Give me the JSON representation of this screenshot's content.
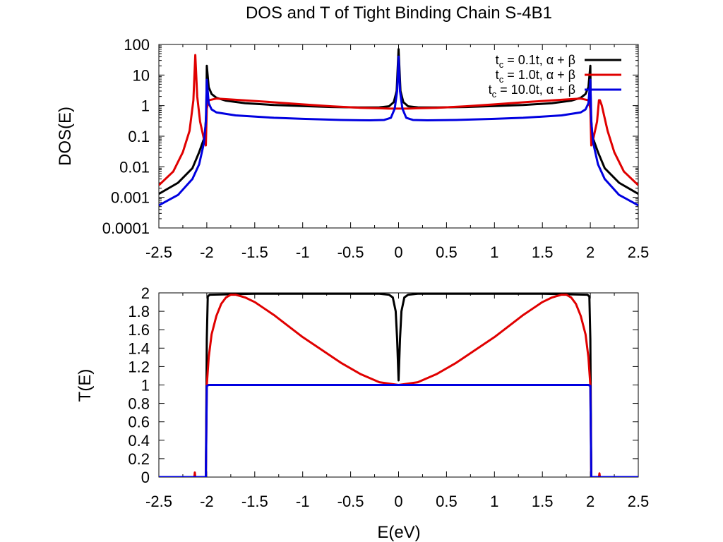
{
  "figure": {
    "title": "DOS and T of Tight Binding Chain S-4B1",
    "xlabel": "E(eV)"
  },
  "chart_data": [
    {
      "type": "line",
      "ylabel": "DOS(E)",
      "yscale": "log",
      "xlim": [
        -2.5,
        2.5
      ],
      "ylim": [
        0.0001,
        100
      ],
      "x_ticks": [
        "-2.5",
        "-2",
        "-1.5",
        "-1",
        "-0.5",
        "0",
        "0.5",
        "1",
        "1.5",
        "2",
        "2.5"
      ],
      "y_ticks": [
        "0.0001",
        "0.001",
        "0.01",
        "0.1",
        "1",
        "10",
        "100"
      ],
      "legend_position": "top-right",
      "series": [
        {
          "name": "t_c = 0.1t, α + β",
          "legend_parts": {
            "t": "t",
            "sub": "c",
            "rest": " = 0.1t, α + β"
          },
          "color": "#000000",
          "points": [
            [
              -2.5,
              0.0013
            ],
            [
              -2.3,
              0.003
            ],
            [
              -2.15,
              0.009
            ],
            [
              -2.08,
              0.03
            ],
            [
              -2.02,
              0.1
            ],
            [
              -2.005,
              0.6
            ],
            [
              -2.0,
              20
            ],
            [
              -1.98,
              4.0
            ],
            [
              -1.95,
              2.4
            ],
            [
              -1.9,
              1.8
            ],
            [
              -1.8,
              1.45
            ],
            [
              -1.6,
              1.2
            ],
            [
              -1.3,
              1.05
            ],
            [
              -1.0,
              0.97
            ],
            [
              -0.7,
              0.9
            ],
            [
              -0.4,
              0.87
            ],
            [
              -0.2,
              0.88
            ],
            [
              -0.1,
              0.95
            ],
            [
              -0.05,
              1.3
            ],
            [
              -0.02,
              3.0
            ],
            [
              0.0,
              70
            ],
            [
              0.02,
              3.0
            ],
            [
              0.05,
              1.3
            ],
            [
              0.1,
              0.95
            ],
            [
              0.2,
              0.88
            ],
            [
              0.4,
              0.87
            ],
            [
              0.7,
              0.9
            ],
            [
              1.0,
              0.97
            ],
            [
              1.3,
              1.05
            ],
            [
              1.6,
              1.2
            ],
            [
              1.8,
              1.45
            ],
            [
              1.9,
              1.8
            ],
            [
              1.95,
              2.4
            ],
            [
              1.98,
              4.0
            ],
            [
              2.0,
              20
            ],
            [
              2.005,
              0.6
            ],
            [
              2.02,
              0.1
            ],
            [
              2.08,
              0.03
            ],
            [
              2.15,
              0.009
            ],
            [
              2.3,
              0.003
            ],
            [
              2.5,
              0.0013
            ]
          ]
        },
        {
          "name": "t_c = 1.0t, α + β",
          "legend_parts": {
            "t": "t",
            "sub": "c",
            "rest": " = 1.0t, α + β"
          },
          "color": "#e00000",
          "points": [
            [
              -2.5,
              0.0025
            ],
            [
              -2.35,
              0.007
            ],
            [
              -2.25,
              0.03
            ],
            [
              -2.18,
              0.15
            ],
            [
              -2.14,
              1.5
            ],
            [
              -2.12,
              45
            ],
            [
              -2.1,
              2.0
            ],
            [
              -2.07,
              0.3
            ],
            [
              -2.03,
              0.08
            ],
            [
              -2.01,
              0.05
            ],
            [
              -2.0,
              0.8
            ],
            [
              -1.98,
              1.5
            ],
            [
              -1.9,
              1.7
            ],
            [
              -1.7,
              1.55
            ],
            [
              -1.4,
              1.35
            ],
            [
              -1.0,
              1.1
            ],
            [
              -0.7,
              0.95
            ],
            [
              -0.4,
              0.85
            ],
            [
              -0.2,
              0.82
            ],
            [
              -0.1,
              0.8
            ],
            [
              0.0,
              0.8
            ],
            [
              0.1,
              0.8
            ],
            [
              0.2,
              0.82
            ],
            [
              0.4,
              0.85
            ],
            [
              0.7,
              0.95
            ],
            [
              1.0,
              1.1
            ],
            [
              1.4,
              1.35
            ],
            [
              1.7,
              1.55
            ],
            [
              1.9,
              1.7
            ],
            [
              1.98,
              1.5
            ],
            [
              2.0,
              0.8
            ],
            [
              2.01,
              0.05
            ],
            [
              2.03,
              0.08
            ],
            [
              2.07,
              0.3
            ],
            [
              2.09,
              1.5
            ],
            [
              2.1,
              1.5
            ],
            [
              2.12,
              1.0
            ],
            [
              2.18,
              0.15
            ],
            [
              2.25,
              0.03
            ],
            [
              2.35,
              0.007
            ],
            [
              2.5,
              0.0025
            ]
          ]
        },
        {
          "name": "t_c = 10.0t, α + β",
          "legend_parts": {
            "t": "t",
            "sub": "c",
            "rest": " = 10.0t, α + β"
          },
          "color": "#0000e0",
          "points": [
            [
              -2.5,
              0.00055
            ],
            [
              -2.3,
              0.0012
            ],
            [
              -2.15,
              0.004
            ],
            [
              -2.08,
              0.012
            ],
            [
              -2.03,
              0.06
            ],
            [
              -2.01,
              0.3
            ],
            [
              -2.0,
              7.0
            ],
            [
              -1.98,
              1.2
            ],
            [
              -1.95,
              0.75
            ],
            [
              -1.9,
              0.6
            ],
            [
              -1.7,
              0.48
            ],
            [
              -1.3,
              0.4
            ],
            [
              -1.0,
              0.37
            ],
            [
              -0.6,
              0.34
            ],
            [
              -0.3,
              0.33
            ],
            [
              -0.15,
              0.34
            ],
            [
              -0.08,
              0.4
            ],
            [
              -0.04,
              0.8
            ],
            [
              -0.015,
              3.0
            ],
            [
              0.0,
              40
            ],
            [
              0.015,
              3.0
            ],
            [
              0.04,
              0.8
            ],
            [
              0.08,
              0.4
            ],
            [
              0.15,
              0.34
            ],
            [
              0.3,
              0.33
            ],
            [
              0.6,
              0.34
            ],
            [
              1.0,
              0.37
            ],
            [
              1.3,
              0.4
            ],
            [
              1.7,
              0.48
            ],
            [
              1.9,
              0.6
            ],
            [
              1.95,
              0.75
            ],
            [
              1.98,
              1.2
            ],
            [
              2.0,
              7.0
            ],
            [
              2.01,
              0.3
            ],
            [
              2.03,
              0.06
            ],
            [
              2.08,
              0.012
            ],
            [
              2.15,
              0.004
            ],
            [
              2.3,
              0.0012
            ],
            [
              2.5,
              0.00055
            ]
          ]
        }
      ]
    },
    {
      "type": "line",
      "ylabel": "T(E)",
      "yscale": "linear",
      "xlim": [
        -2.5,
        2.5
      ],
      "ylim": [
        0,
        2
      ],
      "x_ticks": [
        "-2.5",
        "-2",
        "-1.5",
        "-1",
        "-0.5",
        "0",
        "0.5",
        "1",
        "1.5",
        "2",
        "2.5"
      ],
      "y_ticks": [
        "0",
        "0.2",
        "0.4",
        "0.6",
        "0.8",
        "1",
        "1.2",
        "1.4",
        "1.6",
        "1.8",
        "2"
      ],
      "series": [
        {
          "name": "t_c = 0.1t, α + β",
          "color": "#000000",
          "points": [
            [
              -2.5,
              0
            ],
            [
              -2.01,
              0
            ],
            [
              -2.0,
              1.5
            ],
            [
              -1.99,
              1.96
            ],
            [
              -1.97,
              1.98
            ],
            [
              -1.5,
              1.99
            ],
            [
              -1.0,
              1.99
            ],
            [
              -0.5,
              1.99
            ],
            [
              -0.2,
              1.99
            ],
            [
              -0.1,
              1.98
            ],
            [
              -0.06,
              1.95
            ],
            [
              -0.03,
              1.8
            ],
            [
              -0.015,
              1.5
            ],
            [
              0.0,
              1.05
            ],
            [
              0.015,
              1.5
            ],
            [
              0.03,
              1.8
            ],
            [
              0.06,
              1.95
            ],
            [
              0.1,
              1.98
            ],
            [
              0.2,
              1.99
            ],
            [
              0.5,
              1.99
            ],
            [
              1.0,
              1.99
            ],
            [
              1.5,
              1.99
            ],
            [
              1.97,
              1.98
            ],
            [
              1.99,
              1.96
            ],
            [
              2.0,
              1.5
            ],
            [
              2.01,
              0
            ],
            [
              2.5,
              0
            ]
          ]
        },
        {
          "name": "t_c = 1.0t, α + β",
          "color": "#e00000",
          "points": [
            [
              -2.5,
              0
            ],
            [
              -2.13,
              0
            ],
            [
              -2.125,
              0.05
            ],
            [
              -2.12,
              0
            ],
            [
              -2.01,
              0
            ],
            [
              -2.0,
              1.0
            ],
            [
              -1.98,
              1.3
            ],
            [
              -1.95,
              1.55
            ],
            [
              -1.9,
              1.75
            ],
            [
              -1.85,
              1.88
            ],
            [
              -1.8,
              1.95
            ],
            [
              -1.75,
              1.98
            ],
            [
              -1.7,
              1.98
            ],
            [
              -1.6,
              1.95
            ],
            [
              -1.5,
              1.9
            ],
            [
              -1.4,
              1.83
            ],
            [
              -1.3,
              1.76
            ],
            [
              -1.2,
              1.68
            ],
            [
              -1.0,
              1.52
            ],
            [
              -0.8,
              1.38
            ],
            [
              -0.6,
              1.24
            ],
            [
              -0.4,
              1.12
            ],
            [
              -0.2,
              1.03
            ],
            [
              0.0,
              1.0
            ],
            [
              0.2,
              1.03
            ],
            [
              0.4,
              1.12
            ],
            [
              0.6,
              1.24
            ],
            [
              0.8,
              1.38
            ],
            [
              1.0,
              1.52
            ],
            [
              1.2,
              1.68
            ],
            [
              1.3,
              1.76
            ],
            [
              1.4,
              1.83
            ],
            [
              1.5,
              1.9
            ],
            [
              1.6,
              1.95
            ],
            [
              1.7,
              1.98
            ],
            [
              1.75,
              1.98
            ],
            [
              1.8,
              1.95
            ],
            [
              1.85,
              1.88
            ],
            [
              1.9,
              1.75
            ],
            [
              1.95,
              1.55
            ],
            [
              1.98,
              1.3
            ],
            [
              2.0,
              1.0
            ],
            [
              2.01,
              0
            ],
            [
              2.09,
              0
            ],
            [
              2.095,
              0.04
            ],
            [
              2.1,
              0
            ],
            [
              2.5,
              0
            ]
          ]
        },
        {
          "name": "t_c = 10.0t, α + β",
          "color": "#0000e0",
          "points": [
            [
              -2.5,
              0
            ],
            [
              -2.01,
              0
            ],
            [
              -2.0,
              0.99
            ],
            [
              -1.98,
              1.0
            ],
            [
              -1.0,
              1.0
            ],
            [
              0.0,
              1.0
            ],
            [
              1.0,
              1.0
            ],
            [
              1.98,
              1.0
            ],
            [
              2.0,
              0.99
            ],
            [
              2.01,
              0
            ],
            [
              2.5,
              0
            ]
          ]
        }
      ]
    }
  ]
}
